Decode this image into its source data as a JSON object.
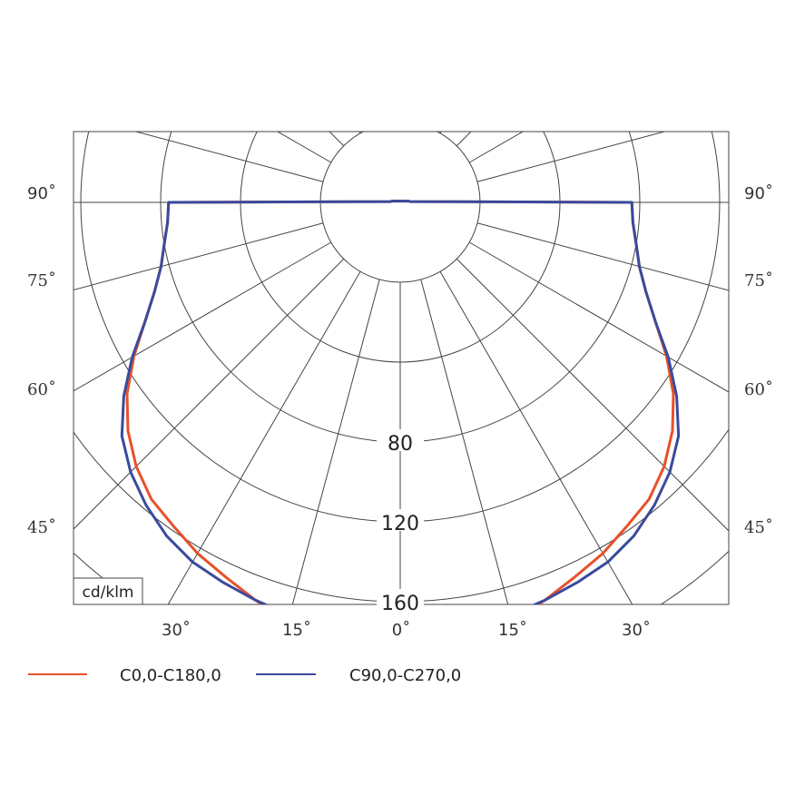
{
  "chart_data": {
    "type": "polar",
    "unit_label": "cd/klm",
    "bottom_ticks": [
      "30˚",
      "15˚",
      "0˚",
      "15˚",
      "30˚"
    ],
    "side_ticks": [
      "90˚",
      "75˚",
      "60˚",
      "45˚"
    ],
    "radial_ticks": [
      {
        "value": 80,
        "label": "80"
      },
      {
        "value": 120,
        "label": "120"
      },
      {
        "value": 160,
        "label": "160"
      }
    ],
    "angle_unit": "deg",
    "series": [
      {
        "name": "C0,0-C180,0",
        "color": "#e8502a",
        "points": [
          [
            0,
            174
          ],
          [
            5,
            175
          ],
          [
            10,
            177
          ],
          [
            15,
            177
          ],
          [
            20,
            172
          ],
          [
            25,
            167
          ],
          [
            30,
            163
          ],
          [
            35,
            158
          ],
          [
            40,
            154
          ],
          [
            45,
            147
          ],
          [
            50,
            138
          ],
          [
            55,
            127
          ],
          [
            60,
            114
          ],
          [
            65,
            101
          ],
          [
            70,
            91
          ],
          [
            75,
            84
          ],
          [
            80,
            80
          ],
          [
            85,
            77
          ],
          [
            90,
            76
          ],
          [
            95,
            6
          ],
          [
            100,
            4
          ],
          [
            105,
            0
          ]
        ]
      },
      {
        "name": "C90,0-C270,0",
        "color": "#3a4a9c",
        "points": [
          [
            0,
            174
          ],
          [
            5,
            175
          ],
          [
            10,
            175
          ],
          [
            15,
            174
          ],
          [
            20,
            172
          ],
          [
            25,
            170
          ],
          [
            30,
            168
          ],
          [
            35,
            164
          ],
          [
            40,
            158
          ],
          [
            45,
            151
          ],
          [
            50,
            142
          ],
          [
            55,
            129
          ],
          [
            60,
            115
          ],
          [
            65,
            101
          ],
          [
            70,
            91
          ],
          [
            75,
            84
          ],
          [
            80,
            80
          ],
          [
            85,
            77
          ],
          [
            90,
            76
          ],
          [
            95,
            6
          ],
          [
            100,
            4
          ],
          [
            105,
            0
          ]
        ]
      }
    ]
  }
}
